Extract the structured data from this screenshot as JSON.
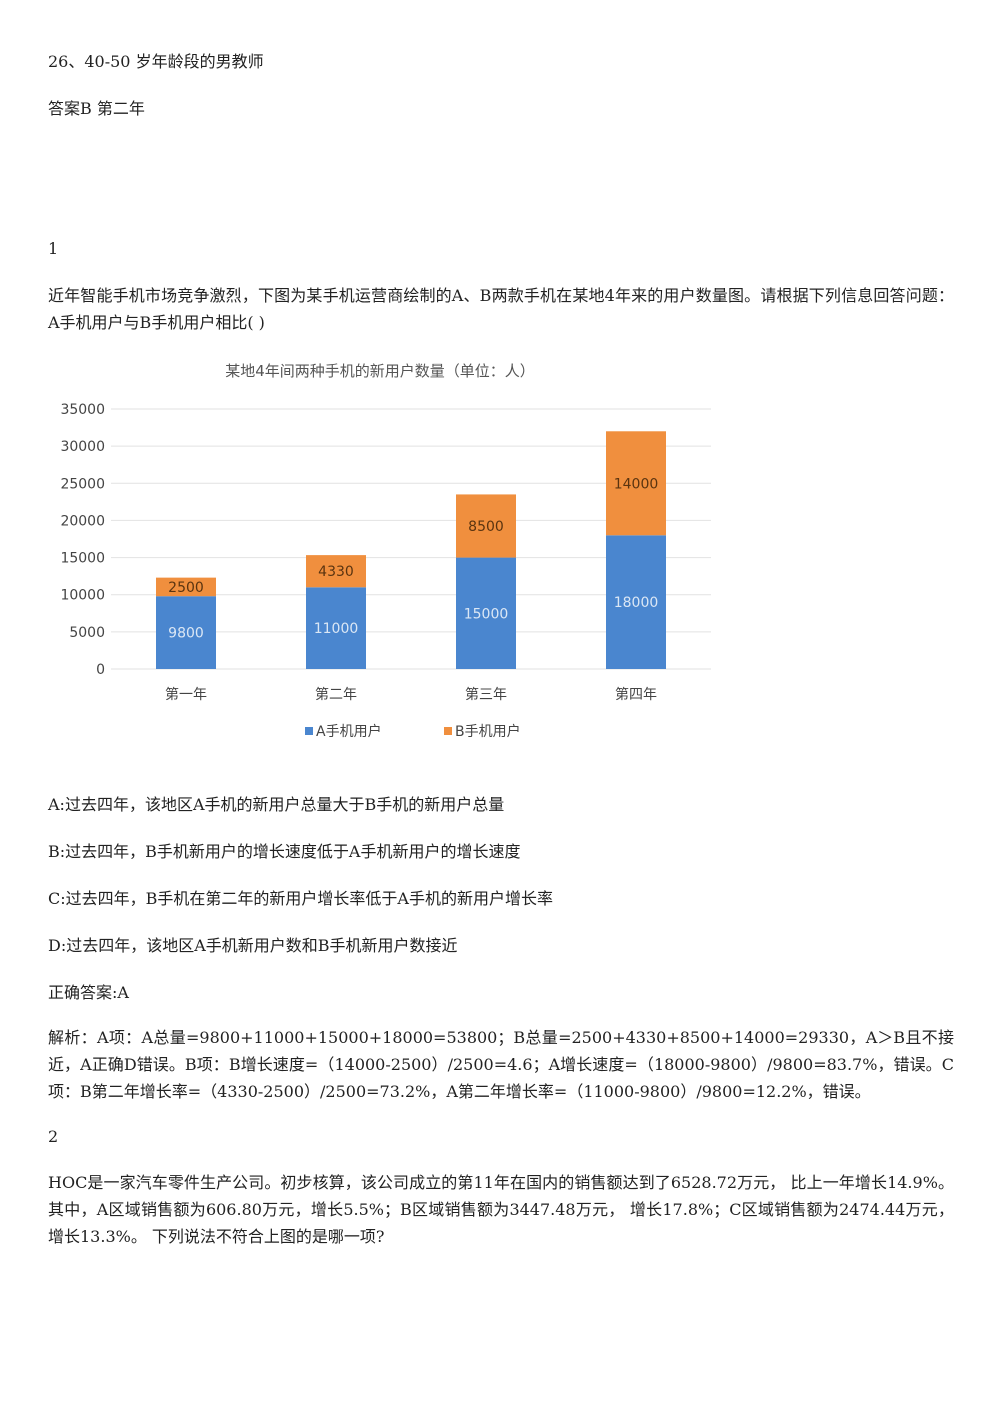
{
  "top": {
    "q26": "26、40-50 岁年龄段的男教师",
    "q26_answer": "答案B 第二年"
  },
  "q1": {
    "number": "1",
    "stem": "近年智能手机市场竞争激烈，下图为某手机运营商绘制的A、B两款手机在某地4年来的用户数量图。请根据下列信息回答问题：A手机用户与B手机用户相比( )",
    "options": [
      "A:过去四年，该地区A手机的新用户总量大于B手机的新用户总量",
      "B:过去四年，B手机新用户的增长速度低于A手机新用户的增长速度",
      "C:过去四年，B手机在第二年的新用户增长率低于A手机的新用户增长率",
      "D:过去四年，该地区A手机新用户数和B手机新用户数接近"
    ],
    "answer": "正确答案:A",
    "analysis": "解析：A项：A总量=9800+11000+15000+18000=53800；B总量=2500+4330+8500+14000=29330，A＞B且不接近，A正确D错误。B项：B增长速度=（14000-2500）/2500=4.6；A增长速度=（18000-9800）/9800=83.7%，错误。C项：B第二年增长率=（4330-2500）/2500=73.2%，A第二年增长率=（11000-9800）/9800=12.2%，错误。"
  },
  "q2": {
    "number": "2",
    "stem": "HOC是一家汽车零件生产公司。初步核算，该公司成立的第11年在国内的销售额达到了6528.72万元， 比上一年增长14.9%。 其中，A区域销售额为606.80万元，增长5.5%；B区域销售额为3447.48万元， 增长17.8%；C区域销售额为2474.44万元，增长13.3%。 下列说法不符合上图的是哪一项?"
  },
  "chart_data": {
    "type": "bar",
    "stacked": true,
    "title": "某地4年间两种手机的新用户数量（单位：人）",
    "categories": [
      "第一年",
      "第二年",
      "第三年",
      "第四年"
    ],
    "series": [
      {
        "name": "A手机用户",
        "values": [
          9800,
          11000,
          15000,
          18000
        ],
        "color": "#4a86cf"
      },
      {
        "name": "B手机用户",
        "values": [
          2500,
          4330,
          8500,
          14000
        ],
        "color": "#f08f3e"
      }
    ],
    "yticks": [
      0,
      5000,
      10000,
      15000,
      20000,
      25000,
      30000,
      35000
    ],
    "ylim": [
      0,
      35000
    ],
    "grid": true,
    "legend": "bottom"
  }
}
